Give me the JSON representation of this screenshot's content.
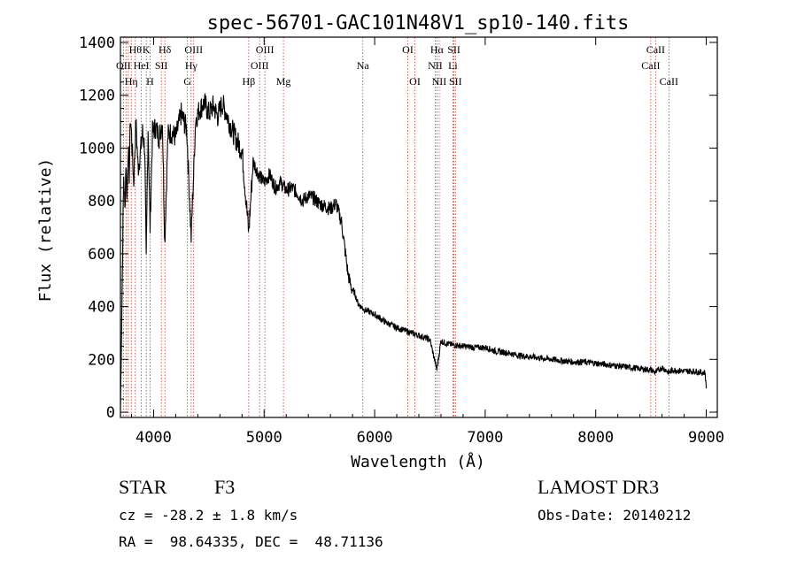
{
  "chart_data": {
    "type": "line",
    "title": "spec-56701-GAC101N48V1_sp10-140.fits",
    "xlabel": "Wavelength (Å)",
    "ylabel": "Flux (relative)",
    "xlim": [
      3700,
      9100
    ],
    "ylim": [
      -20,
      1420
    ],
    "xticks": [
      {
        "value": 4000,
        "label": "4000"
      },
      {
        "value": 5000,
        "label": "5000"
      },
      {
        "value": 6000,
        "label": "6000"
      },
      {
        "value": 7000,
        "label": "7000"
      },
      {
        "value": 8000,
        "label": "8000"
      },
      {
        "value": 9000,
        "label": "9000"
      }
    ],
    "yticks": [
      {
        "value": 0,
        "label": "0"
      },
      {
        "value": 200,
        "label": "200"
      },
      {
        "value": 400,
        "label": "400"
      },
      {
        "value": 600,
        "label": "600"
      },
      {
        "value": 800,
        "label": "800"
      },
      {
        "value": 1000,
        "label": "1000"
      },
      {
        "value": 1200,
        "label": "1200"
      },
      {
        "value": 1400,
        "label": "1400"
      }
    ],
    "series": [
      {
        "name": "flux",
        "x": [
          3700,
          3710,
          3720,
          3730,
          3740,
          3750,
          3760,
          3770,
          3780,
          3790,
          3800,
          3820,
          3840,
          3860,
          3880,
          3900,
          3920,
          3933,
          3950,
          3968,
          3990,
          4020,
          4050,
          4080,
          4101,
          4130,
          4160,
          4200,
          4250,
          4300,
          4340,
          4380,
          4420,
          4460,
          4500,
          4540,
          4580,
          4620,
          4660,
          4700,
          4750,
          4800,
          4861,
          4900,
          4950,
          5000,
          5050,
          5100,
          5150,
          5200,
          5250,
          5300,
          5350,
          5400,
          5450,
          5500,
          5550,
          5600,
          5650,
          5700,
          5730,
          5760,
          5790,
          5820,
          5850,
          5900,
          6000,
          6100,
          6200,
          6300,
          6400,
          6500,
          6563,
          6600,
          6650,
          6700,
          6800,
          6900,
          7000,
          7100,
          7200,
          7300,
          7400,
          7500,
          7600,
          7700,
          7800,
          7900,
          8000,
          8100,
          8200,
          8300,
          8400,
          8500,
          8542,
          8600,
          8662,
          8700,
          8800,
          8900,
          8960,
          8990,
          9000
        ],
        "y": [
          10,
          300,
          620,
          900,
          760,
          950,
          800,
          1000,
          900,
          1120,
          1050,
          870,
          1100,
          920,
          980,
          1060,
          1000,
          560,
          1080,
          700,
          1060,
          1080,
          1040,
          1100,
          640,
          1050,
          1060,
          1040,
          1130,
          1070,
          660,
          1110,
          1150,
          1170,
          1130,
          1160,
          1120,
          1170,
          1130,
          1080,
          1030,
          990,
          680,
          950,
          900,
          870,
          900,
          850,
          870,
          840,
          850,
          830,
          800,
          820,
          810,
          790,
          780,
          770,
          790,
          720,
          620,
          520,
          470,
          450,
          410,
          390,
          370,
          340,
          320,
          305,
          290,
          275,
          160,
          270,
          260,
          255,
          250,
          245,
          245,
          230,
          225,
          215,
          210,
          205,
          200,
          195,
          190,
          190,
          185,
          180,
          175,
          170,
          165,
          160,
          150,
          170,
          150,
          160,
          155,
          155,
          150,
          150,
          90
        ]
      }
    ],
    "lines": [
      {
        "wl": 3727,
        "label": "OII",
        "row": 2
      },
      {
        "wl": 3750,
        "label": "",
        "row": 0
      },
      {
        "wl": 3771,
        "label": "",
        "row": 0
      },
      {
        "wl": 3798,
        "label": "Hη",
        "row": 3
      },
      {
        "wl": 3835,
        "label": "Hθ",
        "row": 1
      },
      {
        "wl": 3889,
        "label": "HeI",
        "row": 2
      },
      {
        "wl": 3934,
        "label": "K",
        "row": 1
      },
      {
        "wl": 3968,
        "label": "H",
        "row": 3
      },
      {
        "wl": 4070,
        "label": "SII",
        "row": 2
      },
      {
        "wl": 4102,
        "label": "Hδ",
        "row": 1
      },
      {
        "wl": 4306,
        "label": "G",
        "row": 3
      },
      {
        "wl": 4340,
        "label": "Hγ",
        "row": 2
      },
      {
        "wl": 4363,
        "label": "OIII",
        "row": 1
      },
      {
        "wl": 4861,
        "label": "Hβ",
        "row": 3
      },
      {
        "wl": 4959,
        "label": "OIII",
        "row": 2
      },
      {
        "wl": 5007,
        "label": "OIII",
        "row": 1
      },
      {
        "wl": 5175,
        "label": "Mg",
        "row": 3
      },
      {
        "wl": 5893,
        "label": "Na",
        "row": 2
      },
      {
        "wl": 6300,
        "label": "OI",
        "row": 1
      },
      {
        "wl": 6364,
        "label": "OI",
        "row": 3
      },
      {
        "wl": 6548,
        "label": "NII",
        "row": 2
      },
      {
        "wl": 6563,
        "label": "Hα",
        "row": 1
      },
      {
        "wl": 6584,
        "label": "NII",
        "row": 3
      },
      {
        "wl": 6708,
        "label": "Li",
        "row": 2
      },
      {
        "wl": 6717,
        "label": "SII",
        "row": 1
      },
      {
        "wl": 6731,
        "label": "SII",
        "row": 3
      },
      {
        "wl": 8498,
        "label": "CaII",
        "row": 2
      },
      {
        "wl": 8542,
        "label": "CaII",
        "row": 1
      },
      {
        "wl": 8662,
        "label": "CaII",
        "row": 3
      }
    ]
  },
  "info": {
    "object_type": "STAR",
    "subclass": "F3",
    "survey": "LAMOST DR3",
    "cz": "cz = -28.2 ± 1.8 km/s",
    "obs_date": "Obs-Date: 20140212",
    "coords": "RA =  98.64335, DEC =  48.71136"
  },
  "colors": {
    "line_marker": "#c0392b",
    "spectrum": "#000000",
    "axis": "#000000"
  }
}
